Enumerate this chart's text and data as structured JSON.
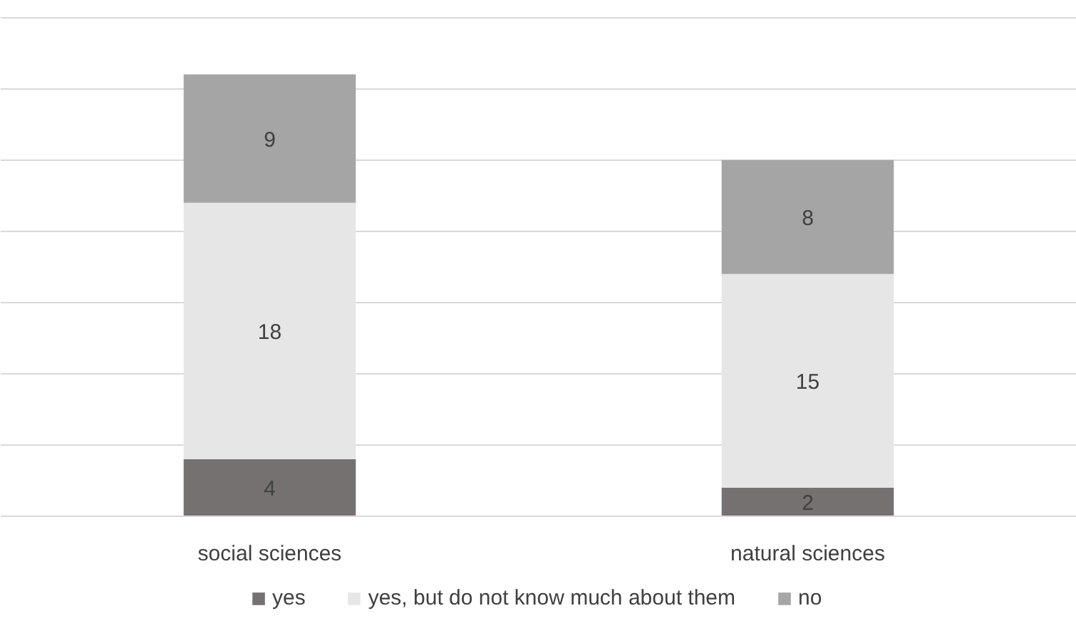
{
  "chart_data": {
    "type": "bar",
    "stacked": true,
    "categories": [
      "social sciences",
      "natural sciences"
    ],
    "series": [
      {
        "name": "yes",
        "color": "#767171",
        "values": [
          4,
          2
        ]
      },
      {
        "name": "yes, but do not know much about them",
        "color": "#e7e6e6",
        "values": [
          18,
          15
        ]
      },
      {
        "name": "no",
        "color": "#a5a5a5",
        "values": [
          9,
          8
        ]
      }
    ],
    "yticks": [
      {
        "value": 0,
        "label": null
      },
      {
        "value": 5,
        "label": null
      },
      {
        "value": 10,
        "label": null
      },
      {
        "value": 15,
        "label": null
      },
      {
        "value": 20,
        "label": null
      },
      {
        "value": 25,
        "label": null
      },
      {
        "value": 30,
        "label": null
      },
      {
        "value": 35,
        "label": null
      }
    ],
    "tick_labels": "x",
    "grid": "y",
    "data_labels": true,
    "legend": "bottom"
  }
}
